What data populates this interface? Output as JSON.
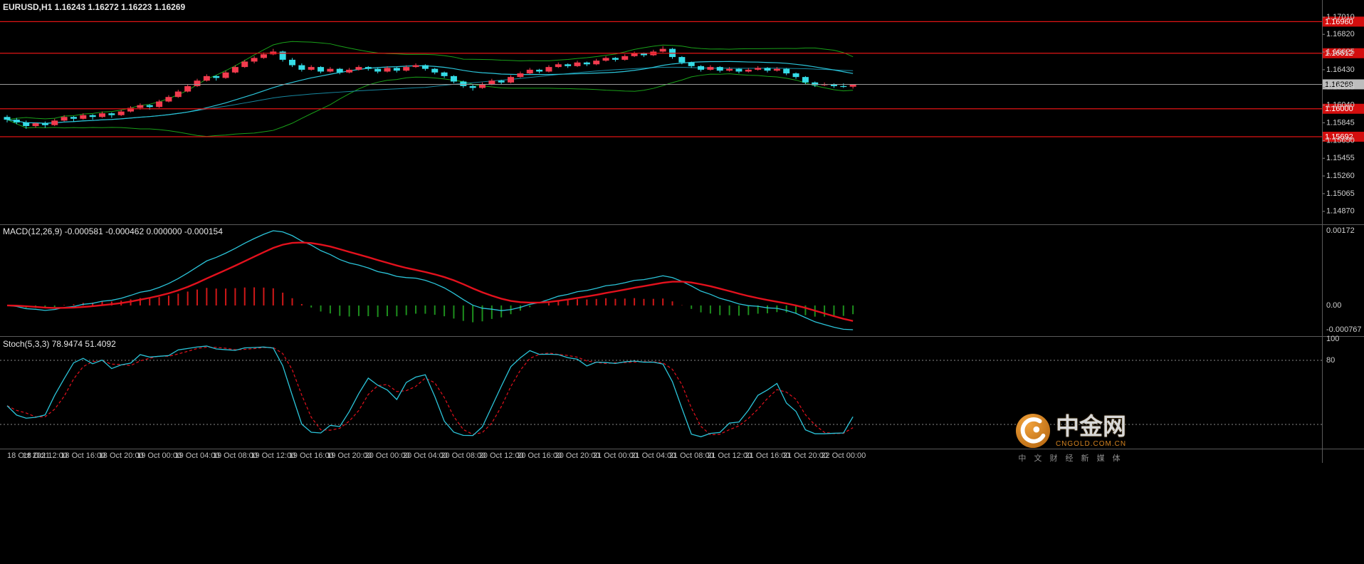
{
  "colors": {
    "background": "#000000",
    "bull": "#f23b4e",
    "bear": "#35dce6",
    "band": "#19a019",
    "ma_fast": "#2bc4d9",
    "ma_slow": "#17879f",
    "hline": "#e01414",
    "hline_tag_bg": "#d40e0e",
    "current_line": "#9a9a9a",
    "current_tag_bg": "#bdbdbd",
    "macd_line": "#2bc4d9",
    "macd_signal": "#e3111d",
    "hist_pos": "#d01818",
    "hist_neg": "#1d8f1d",
    "stoch_k": "#2bc4d9",
    "stoch_d": "#e3111d",
    "axis_text": "#cfcfcf",
    "time_text": "#bfbfbf",
    "divider": "#5a5a5a",
    "level": "#8a8a8a"
  },
  "chart_data": {
    "type": "candlestick",
    "symbol": "EURUSD",
    "timeframe": "H1",
    "title": "EURUSD,H1  1.16243 1.16272 1.16223 1.16269",
    "price_base": 1.16,
    "pip": 0.0001,
    "candles": [
      [
        -9,
        -7,
        -15,
        -12
      ],
      [
        -12,
        -10,
        -17,
        -15
      ],
      [
        -15,
        -13,
        -22,
        -19
      ],
      [
        -19,
        -15,
        -21,
        -16
      ],
      [
        -16,
        -14,
        -21,
        -18
      ],
      [
        -18,
        -11,
        -19,
        -13
      ],
      [
        -13,
        -7,
        -14,
        -9
      ],
      [
        -9,
        -8,
        -14,
        -11
      ],
      [
        -11,
        -5,
        -12,
        -7
      ],
      [
        -7,
        -6,
        -12,
        -9
      ],
      [
        -9,
        -3,
        -10,
        -5
      ],
      [
        -5,
        -4,
        -10,
        -7
      ],
      [
        -7,
        -1,
        -8,
        -3
      ],
      [
        -3,
        3,
        -4,
        1
      ],
      [
        1,
        6,
        -1,
        4
      ],
      [
        4,
        5,
        -1,
        2
      ],
      [
        2,
        10,
        1,
        8
      ],
      [
        8,
        15,
        7,
        13
      ],
      [
        13,
        21,
        12,
        19
      ],
      [
        19,
        27,
        18,
        25
      ],
      [
        25,
        33,
        24,
        31
      ],
      [
        31,
        38,
        30,
        36
      ],
      [
        36,
        37,
        31,
        34
      ],
      [
        34,
        42,
        33,
        40
      ],
      [
        40,
        48,
        39,
        46
      ],
      [
        46,
        54,
        45,
        52
      ],
      [
        52,
        58,
        50,
        56
      ],
      [
        56,
        62,
        55,
        60
      ],
      [
        60,
        66,
        59,
        63
      ],
      [
        63,
        64,
        52,
        54
      ],
      [
        54,
        56,
        46,
        48
      ],
      [
        48,
        50,
        41,
        43
      ],
      [
        43,
        48,
        42,
        46
      ],
      [
        46,
        47,
        39,
        41
      ],
      [
        41,
        46,
        40,
        44
      ],
      [
        44,
        45,
        38,
        40
      ],
      [
        40,
        45,
        39,
        43
      ],
      [
        43,
        48,
        42,
        46
      ],
      [
        46,
        47,
        42,
        44
      ],
      [
        44,
        45,
        39,
        41
      ],
      [
        41,
        47,
        40,
        45
      ],
      [
        45,
        46,
        40,
        42
      ],
      [
        42,
        48,
        41,
        46
      ],
      [
        46,
        50,
        45,
        48
      ],
      [
        48,
        49,
        42,
        44
      ],
      [
        44,
        45,
        38,
        40
      ],
      [
        40,
        41,
        34,
        36
      ],
      [
        36,
        37,
        28,
        30
      ],
      [
        30,
        31,
        23,
        25
      ],
      [
        25,
        27,
        20,
        23
      ],
      [
        23,
        29,
        22,
        27
      ],
      [
        27,
        33,
        26,
        31
      ],
      [
        31,
        32,
        27,
        29
      ],
      [
        29,
        37,
        28,
        35
      ],
      [
        35,
        41,
        34,
        39
      ],
      [
        39,
        45,
        38,
        43
      ],
      [
        43,
        44,
        39,
        41
      ],
      [
        41,
        48,
        40,
        46
      ],
      [
        46,
        51,
        45,
        49
      ],
      [
        49,
        50,
        45,
        47
      ],
      [
        47,
        53,
        46,
        51
      ],
      [
        51,
        52,
        47,
        49
      ],
      [
        49,
        55,
        48,
        53
      ],
      [
        53,
        58,
        52,
        56
      ],
      [
        56,
        57,
        52,
        54
      ],
      [
        54,
        60,
        53,
        58
      ],
      [
        58,
        63,
        57,
        61
      ],
      [
        61,
        62,
        57,
        59
      ],
      [
        59,
        65,
        58,
        63
      ],
      [
        63,
        69,
        62,
        66
      ],
      [
        66,
        67,
        55,
        57
      ],
      [
        57,
        58,
        49,
        51
      ],
      [
        51,
        52,
        45,
        47
      ],
      [
        47,
        48,
        41,
        43
      ],
      [
        43,
        48,
        42,
        46
      ],
      [
        46,
        47,
        40,
        42
      ],
      [
        42,
        46,
        41,
        44
      ],
      [
        44,
        45,
        39,
        41
      ],
      [
        41,
        45,
        40,
        43
      ],
      [
        43,
        47,
        42,
        45
      ],
      [
        45,
        46,
        40,
        42
      ],
      [
        42,
        46,
        41,
        44
      ],
      [
        44,
        45,
        37,
        39
      ],
      [
        39,
        40,
        33,
        35
      ],
      [
        35,
        36,
        27,
        29
      ],
      [
        29,
        30,
        24,
        26
      ],
      [
        26,
        29,
        25,
        27
      ],
      [
        27,
        28,
        23,
        25
      ],
      [
        25,
        28,
        23,
        24.3
      ],
      [
        24.3,
        27.2,
        22.3,
        26.9
      ]
    ],
    "bollinger": {
      "period": 20,
      "deviation": 2
    },
    "ma": [
      {
        "period": 20
      },
      {
        "period": 45
      }
    ],
    "hlines": [
      {
        "value": 1.1696,
        "label": "1.16960"
      },
      {
        "value": 1.16612,
        "label": "1.16612"
      },
      {
        "value": 1.16,
        "label": "1.16000"
      },
      {
        "value": 1.15692,
        "label": "1.15692"
      }
    ],
    "current_price": {
      "value": 1.16269,
      "label": "1.16269"
    },
    "price_axis_labels": [
      "1.17010",
      "1.16820",
      "1.16625",
      "1.16430",
      "1.16235",
      "1.16040",
      "1.15845",
      "1.15650",
      "1.15455",
      "1.15260",
      "1.15065",
      "1.14870"
    ],
    "time_labels": [
      "18 Oct 2021",
      "18 Oct 12:00",
      "18 Oct 16:00",
      "18 Oct 20:00",
      "19 Oct 00:00",
      "19 Oct 04:00",
      "19 Oct 08:00",
      "19 Oct 12:00",
      "19 Oct 16:00",
      "19 Oct 20:00",
      "20 Oct 00:00",
      "20 Oct 04:00",
      "20 Oct 08:00",
      "20 Oct 12:00",
      "20 Oct 16:00",
      "20 Oct 20:00",
      "21 Oct 00:00",
      "21 Oct 04:00",
      "21 Oct 08:00",
      "21 Oct 12:00",
      "21 Oct 16:00",
      "21 Oct 20:00",
      "22 Oct 00:00"
    ],
    "macd": {
      "label": "MACD(12,26,9) -0.000581 -0.000462 0.000000 -0.000154",
      "fast": 12,
      "slow": 26,
      "signal": 9,
      "axis_labels": [
        {
          "text": "0.00172",
          "pos": "top"
        },
        {
          "text": "0.00",
          "pos": "zero"
        },
        {
          "text": "-0.000767",
          "pos": "bottom"
        }
      ]
    },
    "stoch": {
      "label": "Stoch(5,3,3) 78.9474 51.4092",
      "k": 5,
      "slowing": 3,
      "d": 3,
      "levels": [
        80,
        20
      ],
      "axis_labels": [
        {
          "text": "100",
          "value": 100
        },
        {
          "text": "80",
          "value": 80
        }
      ]
    },
    "watermark": {
      "title": "中金网",
      "domain": "CNGOLD.COM.CN",
      "slogan": "中 文 财 经 新 媒 体"
    }
  }
}
